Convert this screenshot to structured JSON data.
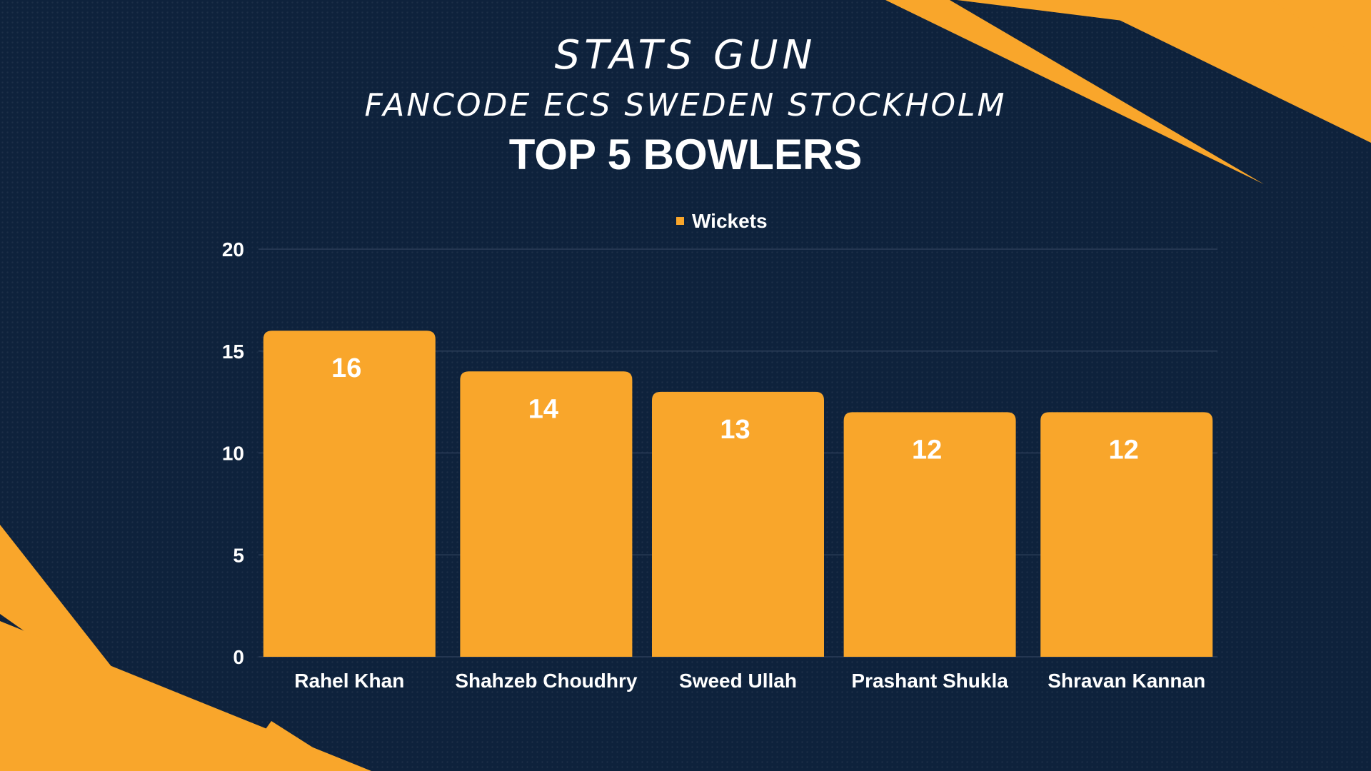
{
  "header": {
    "brand": "STATS GUN",
    "event": "FANCODE ECS SWEDEN STOCKHOLM"
  },
  "colors": {
    "background": "#0e223c",
    "accent": "#f9a62b",
    "text": "#ffffff",
    "grid": "#2b3d58"
  },
  "chart_data": {
    "type": "bar",
    "title": "TOP 5 BOWLERS",
    "categories": [
      "Rahel Khan",
      "Shahzeb Choudhry",
      "Sweed Ullah",
      "Prashant Shukla",
      "Shravan Kannan"
    ],
    "series": [
      {
        "name": "Wickets",
        "values": [
          16,
          14,
          13,
          12,
          12
        ]
      }
    ],
    "data_labels": [
      "16",
      "14",
      "13",
      "12",
      "12"
    ],
    "ylim": [
      0,
      20
    ],
    "yticks": [
      0,
      5,
      10,
      15,
      20
    ],
    "grid": true,
    "legend": "top-center"
  }
}
